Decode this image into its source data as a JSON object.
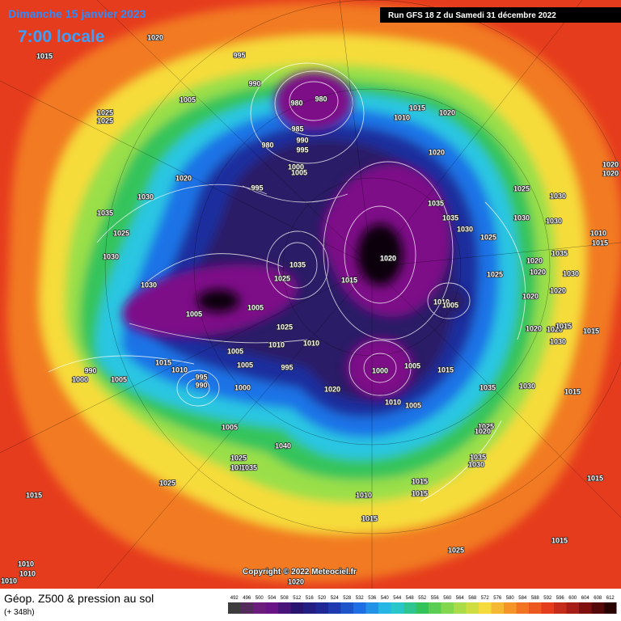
{
  "header": {
    "date": "Dimanche 15 janvier 2023",
    "time": "7:00 locale",
    "run": "Run GFS 18 Z du Samedi 31 décembre 2022"
  },
  "copyright": "Copyright © 2022 Meteociel.fr",
  "footer": {
    "title": "Géop. Z500 & pression au sol",
    "lead": "(+ 348h)"
  },
  "legend": {
    "scale": [
      492,
      496,
      500,
      504,
      508,
      512,
      516,
      520,
      524,
      528,
      532,
      536,
      540,
      544,
      548,
      552,
      556,
      560,
      564,
      568,
      572,
      576,
      580,
      584,
      588,
      592,
      596,
      600,
      604,
      608,
      612
    ]
  },
  "isobar_labels": [
    1020,
    1015,
    995,
    990,
    1005,
    980,
    980,
    1025,
    1025,
    985,
    990,
    995,
    980,
    1000,
    1005,
    1015,
    1010,
    1020,
    1020,
    1020,
    995,
    1030,
    1035,
    1025,
    1030,
    1020,
    1020,
    1035,
    1035,
    1030,
    1030,
    1030,
    1025,
    1025,
    1010,
    1015,
    1030,
    1020,
    1035,
    1035,
    1025,
    1015,
    1025,
    1020,
    1020,
    1030,
    1030,
    1005,
    1005,
    1010,
    1005,
    1020,
    1020,
    1025,
    1020,
    1020,
    1015,
    1015,
    1010,
    1010,
    1030,
    1005,
    1015,
    1010,
    1005,
    995,
    1000,
    1005,
    1015,
    990,
    1000,
    1005,
    995,
    990,
    1000,
    1020,
    1030,
    1035,
    1015,
    1010,
    1005,
    1005,
    1025,
    1020,
    1040,
    1035,
    1030,
    1025,
    1010,
    1035,
    1015,
    1025,
    1015,
    1015,
    1010,
    1015,
    1015,
    1015,
    1025,
    1010,
    1010,
    1010,
    1020
  ]
}
